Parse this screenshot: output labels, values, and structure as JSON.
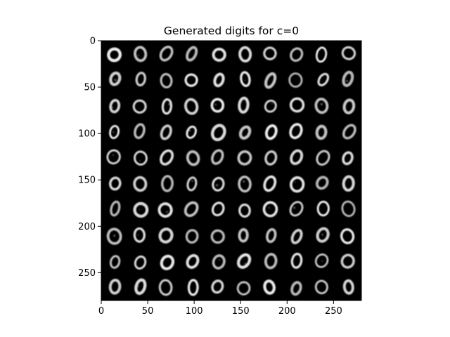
{
  "chart_data": {
    "type": "heatmap",
    "title": "Generated digits for c=0",
    "xlabel": "",
    "ylabel": "",
    "x_ticks": [
      0,
      50,
      100,
      150,
      200,
      250
    ],
    "y_ticks": [
      0,
      50,
      100,
      150,
      200,
      250
    ],
    "x_tick_labels": [
      "0",
      "50",
      "100",
      "150",
      "200",
      "250"
    ],
    "y_tick_labels": [
      "0",
      "50",
      "100",
      "150",
      "200",
      "250"
    ],
    "xlim": [
      0,
      280
    ],
    "ylim": [
      280,
      0
    ],
    "grid_rows": 10,
    "grid_cols": 10,
    "cell_size": 28,
    "digit_depicted": 0,
    "colormap": "gray",
    "colors": {
      "background": "#000000",
      "stroke": "#f2f2f2"
    }
  }
}
